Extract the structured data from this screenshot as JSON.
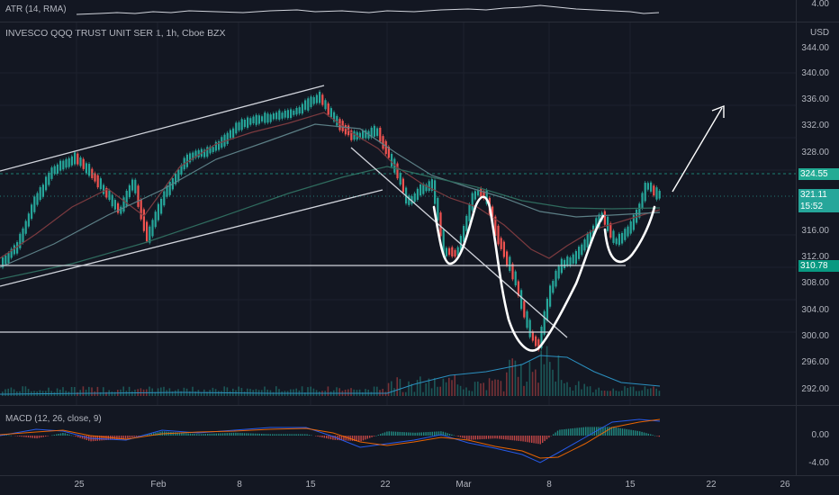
{
  "atr": {
    "label": "ATR (14, RMA)",
    "axis": "4.00"
  },
  "main": {
    "title": "INVESCO QQQ TRUST UNIT SER 1, 1h, Cboe BZX",
    "currency": "USD",
    "ticks": [
      "344.00",
      "340.00",
      "336.00",
      "332.00",
      "328.00",
      "316.00",
      "312.00",
      "308.00",
      "304.00",
      "300.00",
      "296.00",
      "292.00"
    ],
    "tag_high": "324.55",
    "tag_last": "321.11",
    "tag_countdown": "15:52",
    "tag_support": "310.78"
  },
  "macd": {
    "label": "MACD (12, 26, close, 9)",
    "ticks": [
      "0.00",
      "-4.00"
    ]
  },
  "time_axis": [
    "25",
    "Feb",
    "8",
    "15",
    "22",
    "Mar",
    "8",
    "15",
    "22",
    "26"
  ],
  "colors": {
    "bg": "#131722",
    "up": "#26a69a",
    "down": "#ef5350",
    "last": "#26a69a",
    "high": "#22ab94"
  }
}
